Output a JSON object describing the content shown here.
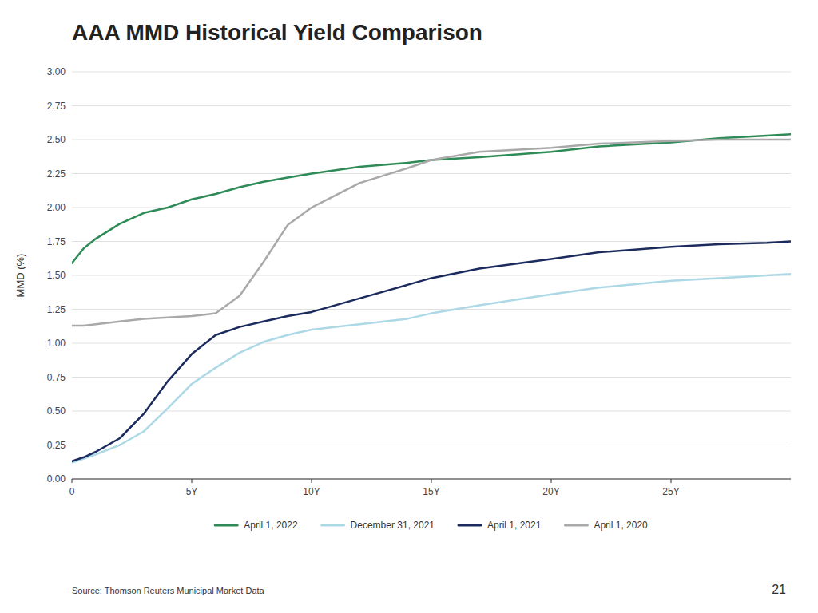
{
  "chart_data": {
    "type": "line",
    "title": "AAA MMD Historical Yield Comparison",
    "y_label": "MMD (%)",
    "annotations": [
      "Source: Thomson Reuters Municipal Market Data",
      "21"
    ],
    "x": [
      0,
      0.5,
      1,
      2,
      3,
      4,
      5,
      6,
      7,
      8,
      9,
      10,
      12,
      14,
      15,
      17,
      20,
      22,
      25,
      27,
      29,
      30
    ],
    "xlim": [
      0,
      30
    ],
    "xticks": [
      0,
      {
        "value": 5,
        "label": "5Y"
      },
      {
        "value": 10,
        "label": "10Y"
      },
      {
        "value": 15,
        "label": "15Y"
      },
      {
        "value": 20,
        "label": "20Y"
      },
      {
        "value": 25,
        "label": "25Y"
      }
    ],
    "ylim": [
      0,
      3.0
    ],
    "yticks": [
      {
        "value": 0.0,
        "label": "0.00"
      },
      {
        "value": 0.25,
        "label": "0.25"
      },
      {
        "value": 0.5,
        "label": "0.50"
      },
      {
        "value": 0.75,
        "label": "0.75"
      },
      {
        "value": 1.0,
        "label": "1.00"
      },
      {
        "value": 1.25,
        "label": "1.25"
      },
      {
        "value": 1.5,
        "label": "1.50"
      },
      {
        "value": 1.75,
        "label": "1.75"
      },
      {
        "value": 2.0,
        "label": "2.00"
      },
      {
        "value": 2.25,
        "label": "2.25"
      },
      {
        "value": 2.5,
        "label": "2.50"
      },
      {
        "value": 2.75,
        "label": "2.75"
      },
      {
        "value": 3.0,
        "label": "3.00"
      }
    ],
    "grid": true,
    "legend": "bottom",
    "series": [
      {
        "name": "April 1, 2022",
        "color": "#2E8B57",
        "values": [
          1.59,
          1.7,
          1.77,
          1.88,
          1.96,
          2.0,
          2.06,
          2.1,
          2.15,
          2.19,
          2.22,
          2.25,
          2.3,
          2.33,
          2.35,
          2.37,
          2.41,
          2.45,
          2.48,
          2.51,
          2.53,
          2.54
        ]
      },
      {
        "name": "December 31, 2021",
        "color": "#ADD8E6",
        "values": [
          0.12,
          0.15,
          0.18,
          0.25,
          0.35,
          0.52,
          0.7,
          0.82,
          0.93,
          1.01,
          1.06,
          1.1,
          1.14,
          1.18,
          1.22,
          1.28,
          1.36,
          1.41,
          1.46,
          1.48,
          1.5,
          1.51
        ]
      },
      {
        "name": "April 1, 2021",
        "color": "#1C2B5E",
        "values": [
          0.13,
          0.16,
          0.2,
          0.3,
          0.48,
          0.72,
          0.92,
          1.06,
          1.12,
          1.16,
          1.2,
          1.23,
          1.33,
          1.43,
          1.48,
          1.55,
          1.62,
          1.67,
          1.71,
          1.73,
          1.74,
          1.75
        ]
      },
      {
        "name": "April 1, 2020",
        "color": "#A9A9A9",
        "values": [
          1.13,
          1.13,
          1.14,
          1.16,
          1.18,
          1.19,
          1.2,
          1.22,
          1.35,
          1.6,
          1.87,
          2.0,
          2.18,
          2.29,
          2.35,
          2.41,
          2.44,
          2.47,
          2.49,
          2.5,
          2.5,
          2.5
        ]
      }
    ]
  }
}
